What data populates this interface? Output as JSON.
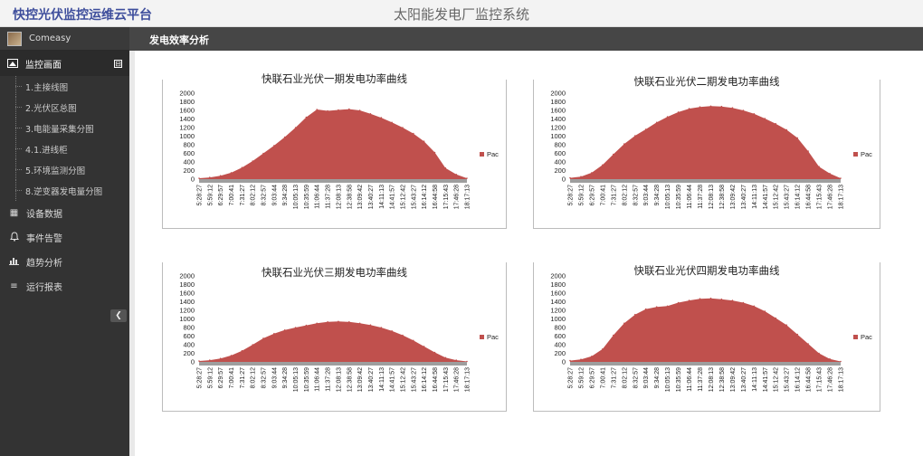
{
  "header": {
    "brand": "快控光伏监控运维云平台",
    "system_title": "太阳能发电厂监控系统"
  },
  "user": {
    "name": "Comeasy"
  },
  "sidebar": {
    "section": {
      "label": "监控画面",
      "collapse_glyph": "⊟",
      "icon": "image-icon"
    },
    "sub_items": [
      "1.主接线图",
      "2.光伏区总图",
      "3.电能量采集分图",
      "4.1.进线柜",
      "5.环境监测分图",
      "8.逆变器发电量分图"
    ],
    "items": [
      {
        "label": "设备数据",
        "icon": "table-icon",
        "glyph": "▦"
      },
      {
        "label": "事件告警",
        "icon": "bell-icon",
        "glyph": "♫"
      },
      {
        "label": "趋势分析",
        "icon": "bar-chart-icon",
        "glyph": "▮"
      },
      {
        "label": "运行报表",
        "icon": "list-icon",
        "glyph": "≡"
      }
    ],
    "collapse_button": "❮"
  },
  "page": {
    "title": "发电效率分析"
  },
  "colors": {
    "series": "#c0504d",
    "baseline": "#9e9e9e",
    "grid": "#d9d9d9"
  },
  "chart_data": [
    {
      "type": "area",
      "title": "快联石业光伏一期发电功率曲线",
      "categories": [
        "5:28:27",
        "5:59:12",
        "6:29:57",
        "7:00:41",
        "7:31:27",
        "8:02:12",
        "8:32:57",
        "9:03:44",
        "9:34:28",
        "10:05:13",
        "10:35:59",
        "11:06:44",
        "11:37:28",
        "12:08:13",
        "12:38:58",
        "13:09:42",
        "13:40:27",
        "14:11:13",
        "14:41:57",
        "15:12:42",
        "15:43:27",
        "16:14:12",
        "16:44:58",
        "17:15:43",
        "17:46:28",
        "18:17:13"
      ],
      "series": [
        {
          "name": "Pac",
          "values": [
            20,
            40,
            80,
            150,
            270,
            420,
            600,
            780,
            980,
            1200,
            1440,
            1620,
            1590,
            1610,
            1630,
            1600,
            1520,
            1430,
            1320,
            1200,
            1060,
            880,
            620,
            260,
            110,
            20
          ]
        }
      ],
      "ylim": [
        0,
        2000
      ],
      "yticks": [
        0,
        200,
        400,
        600,
        800,
        1000,
        1200,
        1400,
        1600,
        1800,
        2000
      ],
      "legend": "right"
    },
    {
      "type": "area",
      "title": "快联石业光伏二期发电功率曲线",
      "categories": [
        "5:28:27",
        "5:59:12",
        "6:29:57",
        "7:00:41",
        "7:31:27",
        "8:02:12",
        "8:32:57",
        "9:03:44",
        "9:34:28",
        "10:05:13",
        "10:35:59",
        "11:06:44",
        "11:37:28",
        "12:08:13",
        "12:38:58",
        "13:09:42",
        "13:40:27",
        "14:11:13",
        "14:41:57",
        "15:12:42",
        "15:43:27",
        "16:14:12",
        "16:44:58",
        "17:15:43",
        "17:46:28",
        "18:17:13"
      ],
      "series": [
        {
          "name": "Pac",
          "values": [
            30,
            60,
            150,
            330,
            580,
            820,
            1010,
            1160,
            1320,
            1450,
            1560,
            1640,
            1680,
            1700,
            1690,
            1660,
            1600,
            1520,
            1410,
            1290,
            1150,
            960,
            650,
            290,
            130,
            20
          ]
        }
      ],
      "ylim": [
        0,
        2000
      ],
      "yticks": [
        0,
        200,
        400,
        600,
        800,
        1000,
        1200,
        1400,
        1600,
        1800,
        2000
      ],
      "legend": "right"
    },
    {
      "type": "area",
      "title": "快联石业光伏三期发电功率曲线",
      "categories": [
        "5:28:27",
        "5:59:12",
        "6:29:57",
        "7:00:41",
        "7:31:27",
        "8:02:12",
        "8:32:57",
        "9:03:44",
        "9:34:28",
        "10:05:13",
        "10:35:59",
        "11:06:44",
        "11:37:28",
        "12:08:13",
        "12:38:58",
        "13:09:42",
        "13:40:27",
        "14:11:13",
        "14:41:57",
        "15:12:42",
        "15:43:27",
        "16:14:12",
        "16:44:58",
        "17:15:43",
        "17:46:28",
        "18:17:13"
      ],
      "series": [
        {
          "name": "Pac",
          "values": [
            20,
            40,
            80,
            150,
            260,
            400,
            550,
            660,
            740,
            800,
            850,
            900,
            930,
            940,
            930,
            900,
            860,
            800,
            720,
            620,
            500,
            360,
            220,
            100,
            40,
            10
          ]
        }
      ],
      "ylim": [
        0,
        2000
      ],
      "yticks": [
        0,
        200,
        400,
        600,
        800,
        1000,
        1200,
        1400,
        1600,
        1800,
        2000
      ],
      "legend": "right"
    },
    {
      "type": "area",
      "title": "快联石业光伏四期发电功率曲线",
      "categories": [
        "5:28:27",
        "5:59:12",
        "6:29:57",
        "7:00:41",
        "7:31:27",
        "8:02:12",
        "8:32:57",
        "9:03:44",
        "9:34:28",
        "10:05:13",
        "10:35:59",
        "11:06:44",
        "11:37:28",
        "12:08:13",
        "12:38:58",
        "13:09:42",
        "13:40:27",
        "14:11:13",
        "14:41:57",
        "15:12:42",
        "15:43:27",
        "16:14:12",
        "16:44:58",
        "17:15:43",
        "17:46:28",
        "18:17:13"
      ],
      "series": [
        {
          "name": "Pac",
          "values": [
            30,
            60,
            130,
            300,
            620,
            900,
            1100,
            1230,
            1280,
            1300,
            1380,
            1430,
            1470,
            1480,
            1460,
            1430,
            1380,
            1300,
            1180,
            1020,
            860,
            640,
            420,
            200,
            70,
            10
          ]
        }
      ],
      "ylim": [
        0,
        2000
      ],
      "yticks": [
        0,
        200,
        400,
        600,
        800,
        1000,
        1200,
        1400,
        1600,
        1800,
        2000
      ],
      "legend": "right"
    }
  ]
}
